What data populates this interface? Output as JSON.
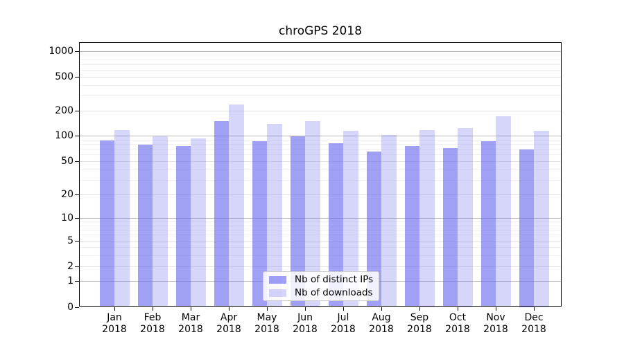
{
  "chart_data": {
    "type": "bar",
    "title": "chroGPS 2018",
    "categories": [
      "Jan",
      "Feb",
      "Mar",
      "Apr",
      "May",
      "Jun",
      "Jul",
      "Aug",
      "Sep",
      "Oct",
      "Nov",
      "Dec"
    ],
    "year_label": "2018",
    "series": [
      {
        "name": "Nb of distinct IPs",
        "color": "rgba(102,102,238,0.62)",
        "values": [
          88,
          79,
          76,
          150,
          87,
          99,
          82,
          65,
          76,
          72,
          86,
          69
        ]
      },
      {
        "name": "Nb of downloads",
        "color": "rgba(102,102,238,0.27)",
        "values": [
          118,
          98,
          93,
          235,
          139,
          151,
          114,
          102,
          117,
          125,
          170,
          115
        ]
      }
    ],
    "y_axis": {
      "scale": "log1p",
      "tick_values": [
        0,
        1,
        2,
        5,
        10,
        20,
        50,
        100,
        200,
        500,
        1000
      ],
      "decade_gridlines": [
        1,
        10,
        100,
        1000
      ],
      "minor_gridlines": [
        3,
        4,
        6,
        7,
        8,
        9,
        30,
        40,
        60,
        70,
        80,
        90,
        300,
        400,
        600,
        700,
        800,
        900
      ],
      "range_top": 1250
    },
    "grid": true,
    "legend_position": "bottom-center"
  },
  "colors": {
    "bar_base": "#6666ee",
    "grid_strong": "#b8b8b8",
    "grid_mid": "#e2e2e2",
    "grid_minor": "#f0f0f0",
    "axis": "#000000",
    "background": "#ffffff",
    "legend_border": "#cccccc"
  }
}
